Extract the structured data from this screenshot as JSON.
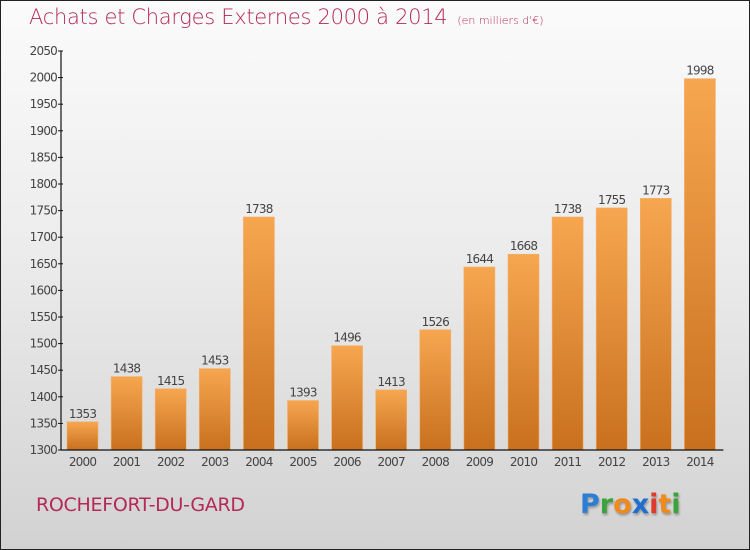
{
  "header": {
    "title": "Achats et Charges Externes 2000 à 2014",
    "subtitle": "(en milliers d'€)"
  },
  "footer": {
    "city": "ROCHEFORT-DU-GARD",
    "logo": {
      "letters": [
        {
          "char": "P",
          "color": "#2a7fd4"
        },
        {
          "char": "r",
          "color": "#3aa33a"
        },
        {
          "char": "o",
          "color": "#f08a1c"
        },
        {
          "char": "x",
          "color": "#1f6fd0"
        },
        {
          "char": "i",
          "color": "#e03a2a"
        },
        {
          "char": "t",
          "color": "#f08a1c"
        },
        {
          "char": "i",
          "color": "#3aa33a"
        }
      ]
    }
  },
  "colors": {
    "title": "#b5285a",
    "bar_top": "#f7a650",
    "bar_bottom": "#c8701e",
    "axis": "#111111"
  },
  "chart_data": {
    "type": "bar",
    "title": "Achats et Charges Externes 2000 à 2014",
    "subtitle": "(en milliers d'€)",
    "xlabel": "",
    "ylabel": "",
    "categories": [
      "2000",
      "2001",
      "2002",
      "2003",
      "2004",
      "2005",
      "2006",
      "2007",
      "2008",
      "2009",
      "2010",
      "2011",
      "2012",
      "2013",
      "2014"
    ],
    "values": [
      1353,
      1438,
      1415,
      1453,
      1738,
      1393,
      1496,
      1413,
      1526,
      1644,
      1668,
      1738,
      1755,
      1773,
      1998
    ],
    "ylim": [
      1300,
      2050
    ],
    "yticks": [
      1300,
      1350,
      1400,
      1450,
      1500,
      1550,
      1600,
      1650,
      1700,
      1750,
      1800,
      1850,
      1900,
      1950,
      2000,
      2050
    ],
    "grid": false,
    "data_labels": true,
    "legend": "none"
  }
}
